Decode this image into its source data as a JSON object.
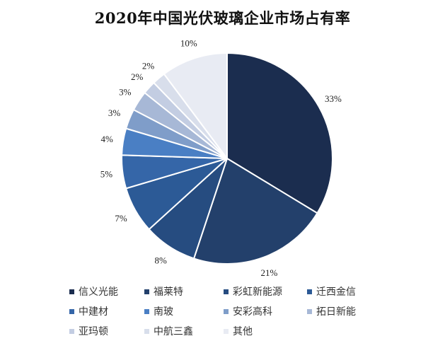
{
  "chart_data": {
    "type": "pie",
    "title": "2020年中国光伏玻璃企业市场占有率",
    "slices": [
      {
        "label": "信义光能",
        "value": 33,
        "display": "33%",
        "color": "#1b2d4f"
      },
      {
        "label": "福莱特",
        "value": 21,
        "display": "21%",
        "color": "#23406b"
      },
      {
        "label": "彩虹新能源",
        "value": 8,
        "display": "8%",
        "color": "#264c80"
      },
      {
        "label": "迁西金信",
        "value": 7,
        "display": "7%",
        "color": "#2c5a96"
      },
      {
        "label": "中建材",
        "value": 5,
        "display": "5%",
        "color": "#3566a8"
      },
      {
        "label": "南玻",
        "value": 4,
        "display": "4%",
        "color": "#4a7fc4"
      },
      {
        "label": "安彩高科",
        "value": 3,
        "display": "3%",
        "color": "#7f9dc9"
      },
      {
        "label": "拓日新能",
        "value": 3,
        "display": "3%",
        "color": "#a7b8d6"
      },
      {
        "label": "亚玛顿",
        "value": 2,
        "display": "2%",
        "color": "#c3cde2"
      },
      {
        "label": "中航三鑫",
        "value": 2,
        "display": "2%",
        "color": "#d8deeb"
      },
      {
        "label": "其他",
        "value": 10,
        "display": "10%",
        "color": "#e8ebf3"
      }
    ],
    "legend_position": "bottom"
  }
}
